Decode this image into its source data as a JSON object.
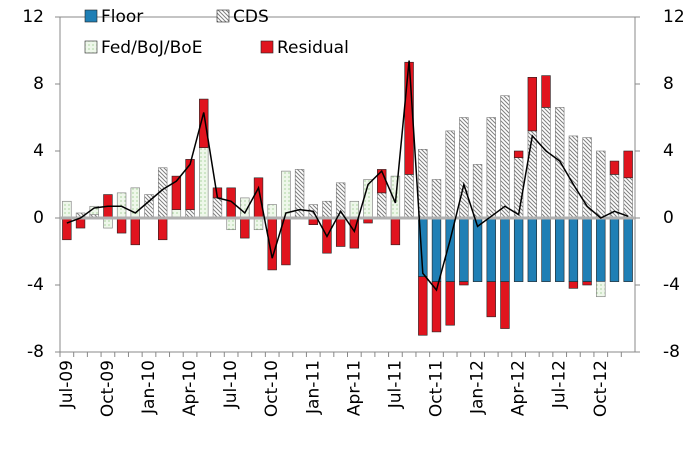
{
  "chart_data": {
    "type": "stacked-bar-line",
    "categories": [
      "Jul-09",
      null,
      null,
      "Oct-09",
      null,
      null,
      "Jan-10",
      null,
      null,
      "Apr-10",
      null,
      null,
      "Jul-10",
      null,
      null,
      "Oct-10",
      null,
      null,
      "Jan-11",
      null,
      null,
      "Apr-11",
      null,
      null,
      "Jul-11",
      null,
      null,
      "Oct-11",
      null,
      null,
      "Jan-12",
      null,
      null,
      "Apr-12",
      null,
      null,
      "Jul-12",
      null,
      null,
      "Oct-12",
      null,
      null
    ],
    "series": [
      {
        "name": "Floor",
        "color": "#1f7fb5",
        "pattern": "solid",
        "values": [
          0,
          0,
          0,
          0,
          0,
          0,
          0,
          0,
          0,
          0,
          0,
          0,
          0,
          0,
          0,
          0,
          0,
          0,
          0,
          0,
          0,
          0,
          0,
          0,
          0,
          0,
          -3.5,
          -3.8,
          -3.8,
          -3.8,
          -3.8,
          -3.8,
          -3.8,
          -3.8,
          -3.8,
          -3.8,
          -3.8,
          -3.8,
          -3.8,
          -3.8,
          -3.8,
          -3.8
        ]
      },
      {
        "name": "CDS",
        "color": "#7f7f7f",
        "pattern": "hatch",
        "values": [
          0,
          0.3,
          0.2,
          0,
          0,
          0,
          1.4,
          3.0,
          0,
          0.5,
          0,
          1.2,
          0,
          0,
          0,
          0,
          0,
          2.9,
          0.8,
          1.0,
          2.1,
          0,
          0,
          1.5,
          0,
          2.6,
          4.1,
          2.3,
          5.2,
          6.0,
          3.2,
          6.0,
          7.3,
          3.6,
          5.2,
          6.6,
          6.6,
          4.9,
          4.8,
          4.0,
          2.6,
          2.4
        ]
      },
      {
        "name": "Fed/BoJ/BoE",
        "color": "#7fbf6f",
        "pattern": "dots",
        "values": [
          1.0,
          0,
          0.5,
          -0.6,
          1.5,
          1.8,
          0,
          0,
          0.5,
          0,
          4.2,
          0,
          -0.7,
          1.2,
          -0.7,
          0.8,
          2.8,
          0,
          0,
          0,
          0,
          1.0,
          2.3,
          0,
          2.5,
          0,
          0,
          0,
          0,
          0,
          0,
          0,
          0,
          0,
          0,
          0,
          0,
          0,
          0,
          -0.9,
          0,
          0
        ]
      },
      {
        "name": "Residual",
        "color": "#e0141e",
        "pattern": "solid",
        "values": [
          -1.3,
          -0.6,
          0,
          1.4,
          -0.9,
          -1.6,
          0,
          -1.3,
          2.0,
          3.0,
          2.9,
          0.6,
          1.8,
          -1.2,
          2.4,
          -3.1,
          -2.8,
          0,
          -0.4,
          -2.1,
          -1.7,
          -1.8,
          -0.3,
          1.4,
          -1.6,
          6.7,
          -3.5,
          -3.0,
          -2.6,
          -0.2,
          0,
          -2.1,
          -2.8,
          0.4,
          3.2,
          1.9,
          0,
          -0.4,
          -0.2,
          0,
          0.8,
          1.6
        ]
      }
    ],
    "line": {
      "color": "#000000",
      "values": [
        -0.3,
        0,
        0.6,
        0.7,
        0.7,
        0.3,
        1.0,
        1.7,
        2.2,
        3.2,
        6.3,
        1.2,
        1.0,
        0.3,
        1.8,
        -2.4,
        0.3,
        0.5,
        0.4,
        -1.1,
        0.4,
        -0.8,
        2.0,
        2.8,
        0.9,
        9.4,
        -3.3,
        -4.3,
        -1.3,
        2.0,
        -0.5,
        0.1,
        0.7,
        0.2,
        4.9,
        4.0,
        3.4,
        2.0,
        0.7,
        0,
        0.4,
        0.1
      ]
    },
    "ylim": [
      -8,
      12
    ],
    "yticks": [
      -8,
      -4,
      0,
      4,
      8,
      12
    ],
    "y2lim": [
      -8,
      12
    ],
    "y2ticks": [
      -8,
      -4,
      0,
      4,
      8,
      12
    ],
    "legend": "top-left"
  }
}
